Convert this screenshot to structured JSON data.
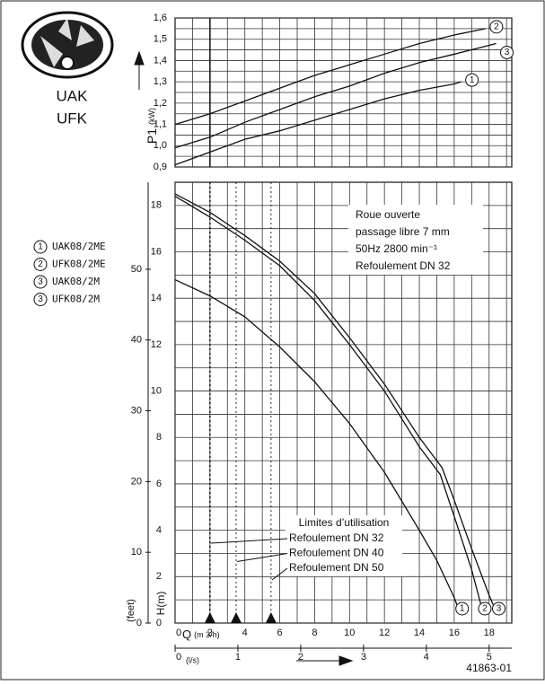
{
  "header": {
    "series_lines": [
      "UAK",
      "UFK"
    ],
    "code": "41863-01"
  },
  "legend": [
    {
      "num": "1",
      "label": "UAK08/2ME"
    },
    {
      "num": "2",
      "label": "UFK08/2ME"
    },
    {
      "num": "3",
      "label": "UAK08/2M"
    },
    {
      "num": "3",
      "label": "UFK08/2M"
    }
  ],
  "chart_data": [
    {
      "type": "line",
      "ylabel": "P1",
      "yunit": "(kW)",
      "xlim": [
        0,
        19.3
      ],
      "ylim": [
        0.9,
        1.6
      ],
      "yticks": [
        {
          "value": 0.9,
          "label": "0,9"
        },
        {
          "value": 1.0,
          "label": "1,0"
        },
        {
          "value": 1.1,
          "label": "1,1"
        },
        {
          "value": 1.2,
          "label": "1,2"
        },
        {
          "value": 1.3,
          "label": "1,3"
        },
        {
          "value": 1.4,
          "label": "1,4"
        },
        {
          "value": 1.5,
          "label": "1,5"
        },
        {
          "value": 1.6,
          "label": "1,6"
        }
      ],
      "minor_yticks": [
        0.95,
        1.05,
        1.15,
        1.25,
        1.35,
        1.45,
        1.55
      ],
      "xgrid": [
        1,
        2,
        3,
        4,
        5,
        6,
        7,
        8,
        9,
        10,
        11,
        12,
        13,
        14,
        15,
        16,
        17,
        18,
        19
      ],
      "limit_x": 2,
      "series": [
        {
          "name": "1",
          "color": "#111",
          "x": [
            0,
            2,
            4,
            6,
            8,
            10,
            12,
            14,
            16,
            16.4
          ],
          "values": [
            0.91,
            0.97,
            1.03,
            1.07,
            1.12,
            1.17,
            1.22,
            1.26,
            1.29,
            1.3
          ]
        },
        {
          "name": "2",
          "color": "#111",
          "x": [
            0,
            2,
            4,
            6,
            8,
            10,
            12,
            14,
            16,
            17.8
          ],
          "values": [
            1.1,
            1.15,
            1.21,
            1.27,
            1.33,
            1.38,
            1.43,
            1.48,
            1.52,
            1.55
          ]
        },
        {
          "name": "3",
          "color": "#111",
          "x": [
            0,
            2,
            4,
            6,
            8,
            10,
            12,
            14,
            16,
            18.4
          ],
          "values": [
            0.99,
            1.04,
            1.11,
            1.17,
            1.23,
            1.28,
            1.34,
            1.39,
            1.43,
            1.48
          ]
        }
      ]
    },
    {
      "type": "line",
      "ylabel": "H(m)",
      "y2label": "(feet)",
      "xlabel": "Q",
      "xunit": "(m 3/h)",
      "x2label": "(l/s)",
      "xlim": [
        0,
        19.3
      ],
      "ylim": [
        0,
        19
      ],
      "y2lim": [
        0,
        62.3
      ],
      "x2lim": [
        0,
        5.36
      ],
      "xticks": [
        0,
        2,
        4,
        6,
        8,
        10,
        12,
        14,
        16,
        18
      ],
      "minor_xticks": [
        1,
        3,
        5,
        7,
        9,
        11,
        13,
        15,
        17,
        19
      ],
      "yticks": [
        0,
        2,
        4,
        6,
        8,
        10,
        12,
        14,
        16,
        18
      ],
      "minor_yticks": [
        1,
        3,
        5,
        7,
        9,
        11,
        13,
        15,
        17
      ],
      "y2ticks": [
        0,
        10,
        20,
        30,
        40,
        50
      ],
      "x2ticks": [
        0,
        1,
        2,
        3,
        4,
        5
      ],
      "annotation": [
        "Roue ouverte",
        "passage libre 7 mm",
        "50Hz 2800 min⁻¹",
        "Refoulement DN 32"
      ],
      "limits_title": "Limites d’utilisation",
      "limits": [
        {
          "x": 2,
          "label": "Refoulement DN 32"
        },
        {
          "x": 3.5,
          "label": "Refoulement DN 40"
        },
        {
          "x": 5.5,
          "label": "Refoulement DN 50"
        }
      ],
      "series": [
        {
          "name": "1",
          "color": "#111",
          "x": [
            0,
            2,
            4,
            6,
            8,
            10,
            12,
            14,
            15,
            16,
            16.3
          ],
          "values": [
            14.8,
            14.1,
            13.2,
            11.9,
            10.4,
            8.6,
            6.5,
            4.0,
            2.7,
            1.1,
            0.5
          ]
        },
        {
          "name": "2",
          "color": "#111",
          "x": [
            0,
            2,
            4,
            6,
            8,
            10,
            12,
            14,
            15.2,
            16,
            17,
            17.6
          ],
          "values": [
            18.4,
            17.5,
            16.5,
            15.4,
            13.9,
            12.0,
            10.0,
            7.6,
            6.4,
            4.6,
            2.3,
            0.6
          ]
        },
        {
          "name": "3",
          "color": "#111",
          "x": [
            0,
            2,
            4,
            6,
            8,
            10,
            12,
            14,
            15.3,
            16,
            17,
            18,
            18.4
          ],
          "values": [
            18.5,
            17.7,
            16.7,
            15.6,
            14.2,
            12.3,
            10.3,
            8.0,
            6.7,
            5.3,
            3.2,
            1.2,
            0.5
          ]
        }
      ]
    }
  ]
}
